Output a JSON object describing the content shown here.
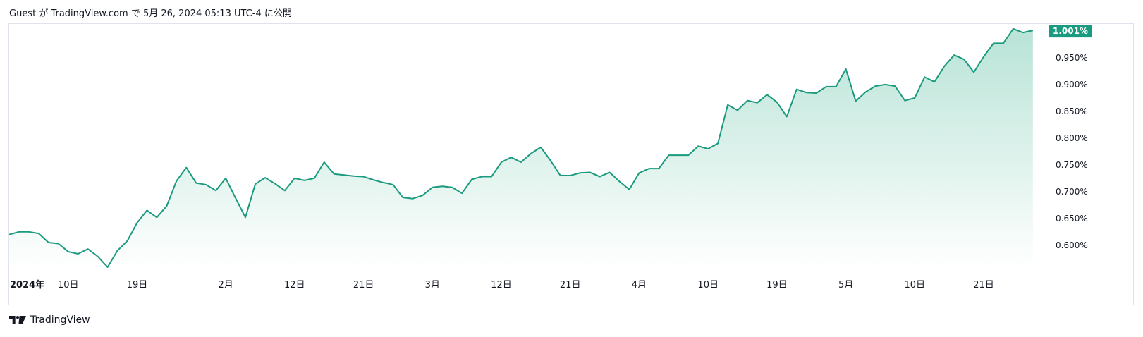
{
  "header": {
    "caption": "Guest が TradingView.com で 5月 26, 2024 05:13 UTC-4 に公開"
  },
  "footer": {
    "brand": "TradingView",
    "logo_icon": "tradingview-logo-icon"
  },
  "colors": {
    "line": "#1a9a7e",
    "area_top": "#b8e3d6",
    "area_bottom": "#ffffff",
    "price_label_bg": "#1a9a7e",
    "price_label_text": "#ffffff",
    "axis_text": "#131722",
    "border": "#e0e3eb"
  },
  "chart_data": {
    "type": "area",
    "title": "",
    "xlabel": "",
    "ylabel": "",
    "y_unit": "%",
    "ylim": [
      0.555,
      1.013
    ],
    "y_ticks": [
      "0.600%",
      "0.650%",
      "0.700%",
      "0.750%",
      "0.800%",
      "0.850%",
      "0.900%",
      "0.950%"
    ],
    "last_value_label": "1.001%",
    "x_ticks": [
      {
        "label": "2024年",
        "index": 0,
        "bold": true
      },
      {
        "label": "10日",
        "index": 6
      },
      {
        "label": "19日",
        "index": 13
      },
      {
        "label": "2月",
        "index": 22
      },
      {
        "label": "12日",
        "index": 29
      },
      {
        "label": "21日",
        "index": 36
      },
      {
        "label": "3月",
        "index": 43
      },
      {
        "label": "12日",
        "index": 50
      },
      {
        "label": "21日",
        "index": 57
      },
      {
        "label": "4月",
        "index": 64
      },
      {
        "label": "10日",
        "index": 71
      },
      {
        "label": "19日",
        "index": 78
      },
      {
        "label": "5月",
        "index": 85
      },
      {
        "label": "10日",
        "index": 92
      },
      {
        "label": "21日",
        "index": 99
      }
    ],
    "grid": false,
    "series": [
      {
        "values": [
          0.62,
          0.625,
          0.625,
          0.622,
          0.605,
          0.603,
          0.588,
          0.584,
          0.593,
          0.579,
          0.559,
          0.59,
          0.608,
          0.642,
          0.665,
          0.652,
          0.673,
          0.72,
          0.745,
          0.716,
          0.713,
          0.702,
          0.725,
          0.688,
          0.652,
          0.714,
          0.726,
          0.715,
          0.702,
          0.725,
          0.721,
          0.725,
          0.755,
          0.733,
          0.731,
          0.729,
          0.728,
          0.722,
          0.717,
          0.713,
          0.689,
          0.687,
          0.693,
          0.708,
          0.71,
          0.708,
          0.697,
          0.723,
          0.728,
          0.728,
          0.755,
          0.764,
          0.755,
          0.771,
          0.783,
          0.758,
          0.73,
          0.73,
          0.735,
          0.736,
          0.728,
          0.736,
          0.719,
          0.704,
          0.735,
          0.743,
          0.743,
          0.768,
          0.768,
          0.768,
          0.785,
          0.78,
          0.79,
          0.862,
          0.852,
          0.87,
          0.866,
          0.881,
          0.867,
          0.84,
          0.891,
          0.885,
          0.884,
          0.896,
          0.896,
          0.929,
          0.869,
          0.886,
          0.897,
          0.9,
          0.897,
          0.87,
          0.875,
          0.914,
          0.905,
          0.934,
          0.955,
          0.947,
          0.923,
          0.952,
          0.977,
          0.977,
          1.004,
          0.997,
          1.001
        ]
      }
    ]
  }
}
